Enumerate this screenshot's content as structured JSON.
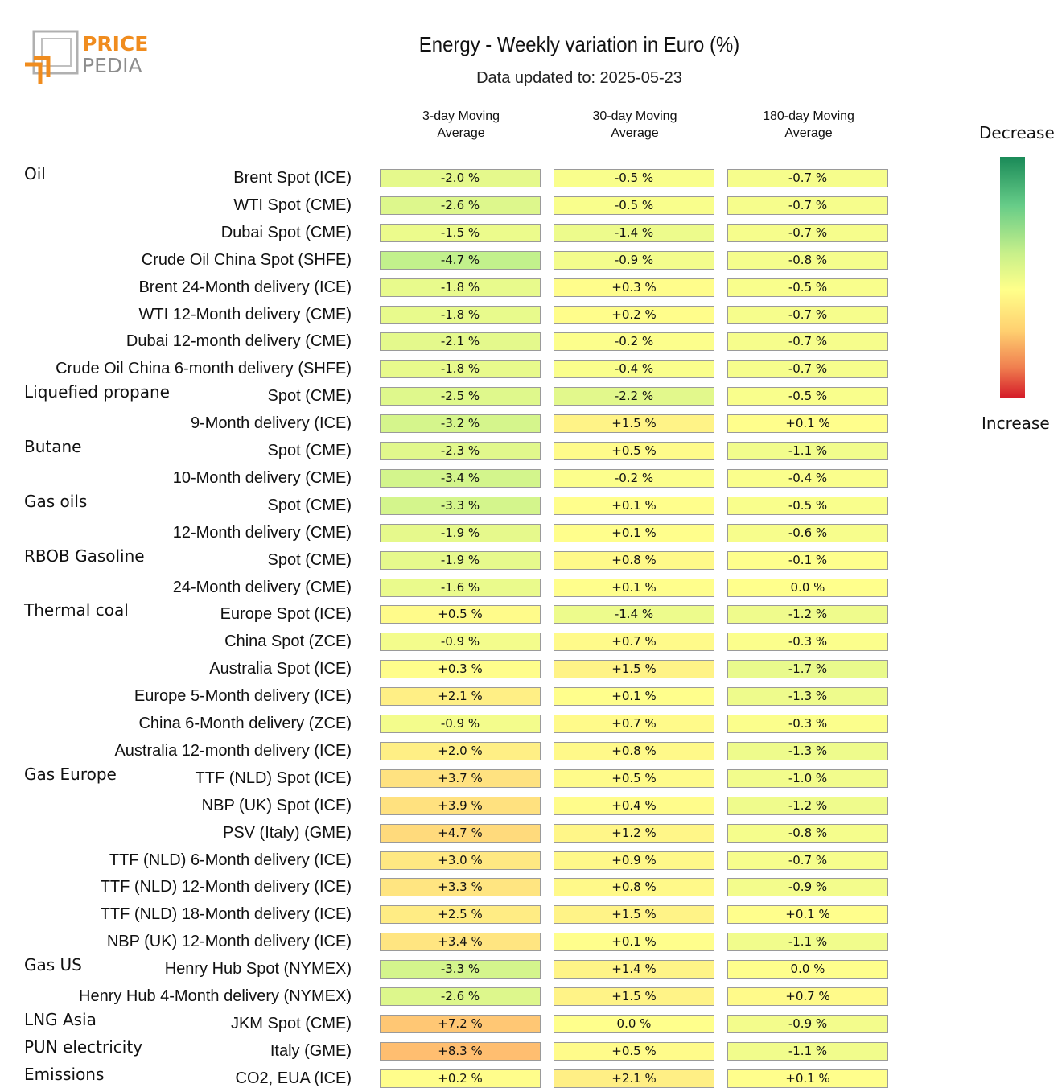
{
  "logo": {
    "line1": "PRICE",
    "line2": "PEDIA"
  },
  "colors": {
    "logo_orange": "#f08c1e",
    "logo_gray": "#8c8c8c"
  },
  "chart_data": {
    "type": "table",
    "title": "Energy - Weekly variation in Euro (%)",
    "subtitle": "Data updated to: 2025-05-23",
    "columns": [
      "3-day Moving\nAverage",
      "30-day Moving\nAverage",
      "180-day Moving\nAverage"
    ],
    "legend": {
      "top": "Decrease",
      "bottom": "Increase"
    },
    "rows": [
      {
        "group": "Oil",
        "label": "Brent Spot (ICE)",
        "values": [
          "-2.0 %",
          "-0.5 %",
          "-0.7 %"
        ],
        "nums": [
          -2.0,
          -0.5,
          -0.7
        ]
      },
      {
        "group": "",
        "label": "WTI Spot (CME)",
        "values": [
          "-2.6 %",
          "-0.5 %",
          "-0.7 %"
        ],
        "nums": [
          -2.6,
          -0.5,
          -0.7
        ]
      },
      {
        "group": "",
        "label": "Dubai Spot (CME)",
        "values": [
          "-1.5 %",
          "-1.4 %",
          "-0.7 %"
        ],
        "nums": [
          -1.5,
          -1.4,
          -0.7
        ]
      },
      {
        "group": "",
        "label": "Crude Oil China Spot (SHFE)",
        "values": [
          "-4.7 %",
          "-0.9 %",
          "-0.8 %"
        ],
        "nums": [
          -4.7,
          -0.9,
          -0.8
        ]
      },
      {
        "group": "",
        "label": "Brent 24-Month delivery (ICE)",
        "values": [
          "-1.8 %",
          "+0.3 %",
          "-0.5 %"
        ],
        "nums": [
          -1.8,
          0.3,
          -0.5
        ]
      },
      {
        "group": "",
        "label": "WTI 12-Month delivery (CME)",
        "values": [
          "-1.8 %",
          "+0.2 %",
          "-0.7 %"
        ],
        "nums": [
          -1.8,
          0.2,
          -0.7
        ]
      },
      {
        "group": "",
        "label": "Dubai 12-month delivery (CME)",
        "values": [
          "-2.1 %",
          "-0.2 %",
          "-0.7 %"
        ],
        "nums": [
          -2.1,
          -0.2,
          -0.7
        ]
      },
      {
        "group": "",
        "label": "Crude Oil China 6-month delivery (SHFE)",
        "values": [
          "-1.8 %",
          "-0.4 %",
          "-0.7 %"
        ],
        "nums": [
          -1.8,
          -0.4,
          -0.7
        ]
      },
      {
        "group": "Liquefied propane",
        "label": "Spot (CME)",
        "values": [
          "-2.5 %",
          "-2.2 %",
          "-0.5 %"
        ],
        "nums": [
          -2.5,
          -2.2,
          -0.5
        ]
      },
      {
        "group": "",
        "label": "9-Month delivery (ICE)",
        "values": [
          "-3.2 %",
          "+1.5 %",
          "+0.1 %"
        ],
        "nums": [
          -3.2,
          1.5,
          0.1
        ]
      },
      {
        "group": "Butane",
        "label": "Spot (CME)",
        "values": [
          "-2.3 %",
          "+0.5 %",
          "-1.1 %"
        ],
        "nums": [
          -2.3,
          0.5,
          -1.1
        ]
      },
      {
        "group": "",
        "label": "10-Month delivery (CME)",
        "values": [
          "-3.4 %",
          "-0.2 %",
          "-0.4 %"
        ],
        "nums": [
          -3.4,
          -0.2,
          -0.4
        ]
      },
      {
        "group": "Gas oils",
        "label": "Spot (CME)",
        "values": [
          "-3.3 %",
          "+0.1 %",
          "-0.5 %"
        ],
        "nums": [
          -3.3,
          0.1,
          -0.5
        ]
      },
      {
        "group": "",
        "label": "12-Month delivery (CME)",
        "values": [
          "-1.9 %",
          "+0.1 %",
          "-0.6 %"
        ],
        "nums": [
          -1.9,
          0.1,
          -0.6
        ]
      },
      {
        "group": "RBOB Gasoline",
        "label": "Spot (CME)",
        "values": [
          "-1.9 %",
          "+0.8 %",
          "-0.1 %"
        ],
        "nums": [
          -1.9,
          0.8,
          -0.1
        ]
      },
      {
        "group": "",
        "label": "24-Month delivery (CME)",
        "values": [
          "-1.6 %",
          "+0.1 %",
          "0.0 %"
        ],
        "nums": [
          -1.6,
          0.1,
          0.0
        ]
      },
      {
        "group": "Thermal coal",
        "label": "Europe Spot (ICE)",
        "values": [
          "+0.5 %",
          "-1.4 %",
          "-1.2 %"
        ],
        "nums": [
          0.5,
          -1.4,
          -1.2
        ]
      },
      {
        "group": "",
        "label": "China Spot (ZCE)",
        "values": [
          "-0.9 %",
          "+0.7 %",
          "-0.3 %"
        ],
        "nums": [
          -0.9,
          0.7,
          -0.3
        ]
      },
      {
        "group": "",
        "label": "Australia Spot (ICE)",
        "values": [
          "+0.3 %",
          "+1.5 %",
          "-1.7 %"
        ],
        "nums": [
          0.3,
          1.5,
          -1.7
        ]
      },
      {
        "group": "",
        "label": "Europe 5-Month delivery (ICE)",
        "values": [
          "+2.1 %",
          "+0.1 %",
          "-1.3 %"
        ],
        "nums": [
          2.1,
          0.1,
          -1.3
        ]
      },
      {
        "group": "",
        "label": "China 6-Month delivery (ZCE)",
        "values": [
          "-0.9 %",
          "+0.7 %",
          "-0.3 %"
        ],
        "nums": [
          -0.9,
          0.7,
          -0.3
        ]
      },
      {
        "group": "",
        "label": "Australia 12-month delivery (ICE)",
        "values": [
          "+2.0 %",
          "+0.8 %",
          "-1.3 %"
        ],
        "nums": [
          2.0,
          0.8,
          -1.3
        ]
      },
      {
        "group": "Gas Europe",
        "label": "TTF (NLD) Spot (ICE)",
        "values": [
          "+3.7 %",
          "+0.5 %",
          "-1.0 %"
        ],
        "nums": [
          3.7,
          0.5,
          -1.0
        ]
      },
      {
        "group": "",
        "label": "NBP (UK) Spot (ICE)",
        "values": [
          "+3.9 %",
          "+0.4 %",
          "-1.2 %"
        ],
        "nums": [
          3.9,
          0.4,
          -1.2
        ]
      },
      {
        "group": "",
        "label": "PSV (Italy) (GME)",
        "values": [
          "+4.7 %",
          "+1.2 %",
          "-0.8 %"
        ],
        "nums": [
          4.7,
          1.2,
          -0.8
        ]
      },
      {
        "group": "",
        "label": "TTF (NLD) 6-Month delivery (ICE)",
        "values": [
          "+3.0 %",
          "+0.9 %",
          "-0.7 %"
        ],
        "nums": [
          3.0,
          0.9,
          -0.7
        ]
      },
      {
        "group": "",
        "label": "TTF (NLD) 12-Month delivery (ICE)",
        "values": [
          "+3.3 %",
          "+0.8 %",
          "-0.9 %"
        ],
        "nums": [
          3.3,
          0.8,
          -0.9
        ]
      },
      {
        "group": "",
        "label": "TTF (NLD) 18-Month delivery (ICE)",
        "values": [
          "+2.5 %",
          "+1.5 %",
          "+0.1 %"
        ],
        "nums": [
          2.5,
          1.5,
          0.1
        ]
      },
      {
        "group": "",
        "label": "NBP (UK) 12-Month delivery (ICE)",
        "values": [
          "+3.4 %",
          "+0.1 %",
          "-1.1 %"
        ],
        "nums": [
          3.4,
          0.1,
          -1.1
        ]
      },
      {
        "group": "Gas US",
        "label": "Henry Hub Spot (NYMEX)",
        "values": [
          "-3.3 %",
          "+1.4 %",
          "0.0 %"
        ],
        "nums": [
          -3.3,
          1.4,
          0.0
        ]
      },
      {
        "group": "",
        "label": "Henry Hub 4-Month delivery (NYMEX)",
        "values": [
          "-2.6 %",
          "+1.5 %",
          "+0.7 %"
        ],
        "nums": [
          -2.6,
          1.5,
          0.7
        ]
      },
      {
        "group": "LNG Asia",
        "label": "JKM Spot (CME)",
        "values": [
          "+7.2 %",
          "0.0 %",
          "-0.9 %"
        ],
        "nums": [
          7.2,
          0.0,
          -0.9
        ]
      },
      {
        "group": "PUN electricity",
        "label": "Italy (GME)",
        "values": [
          "+8.3 %",
          "+0.5 %",
          "-1.1 %"
        ],
        "nums": [
          8.3,
          0.5,
          -1.1
        ]
      },
      {
        "group": "Emissions",
        "label": "CO2, EUA (ICE)",
        "values": [
          "+0.2 %",
          "+2.1 %",
          "+0.1 %"
        ],
        "nums": [
          0.2,
          2.1,
          0.1
        ]
      }
    ]
  }
}
